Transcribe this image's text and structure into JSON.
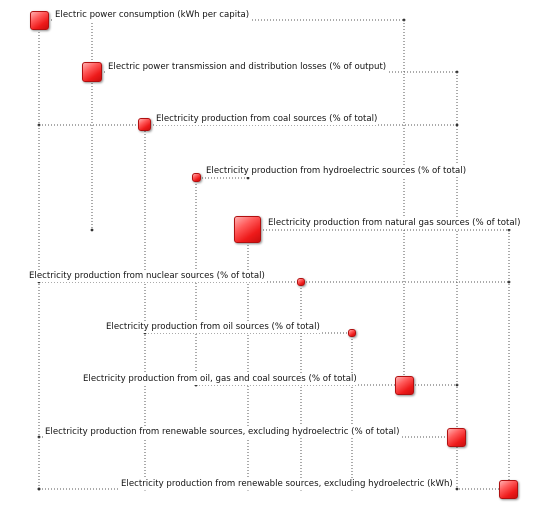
{
  "diagram": {
    "nodes": [
      {
        "id": "n1",
        "label": "Electric power consumption (kWh per capita)"
      },
      {
        "id": "n2",
        "label": "Electric power transmission and distribution losses (% of output)"
      },
      {
        "id": "n3",
        "label": "Electricity production from coal sources (% of total)"
      },
      {
        "id": "n4",
        "label": "Electricity production from hydroelectric sources (% of total)"
      },
      {
        "id": "n5",
        "label": "Electricity production from natural gas sources (% of total)"
      },
      {
        "id": "n6",
        "label": "Electricity production from nuclear sources (% of total)"
      },
      {
        "id": "n7",
        "label": "Electricity production from oil sources (% of total)"
      },
      {
        "id": "n8",
        "label": "Electricity production from oil, gas and coal sources (% of total)"
      },
      {
        "id": "n9",
        "label": "Electricity production from renewable sources, excluding hydroelectric (% of total)"
      },
      {
        "id": "n10",
        "label": "Electricity production from renewable sources, excluding hydroelectric (kWh)"
      }
    ],
    "node_color": "#ee1a1a",
    "link_color": "#555555"
  }
}
